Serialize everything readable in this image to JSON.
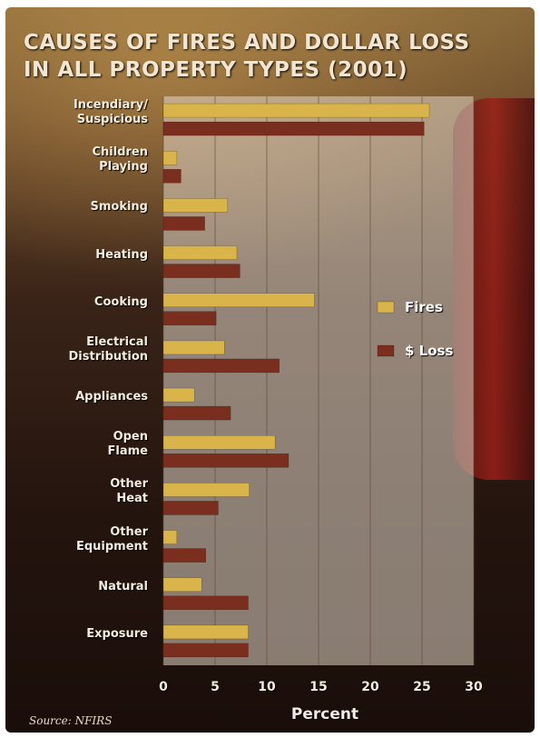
{
  "chart_data": {
    "type": "hbar",
    "title": "CAUSES OF FIRES AND DOLLAR LOSS\nIN ALL PROPERTY TYPES (2001)",
    "categories": [
      "Incendiary/\nSuspicious",
      "Children\nPlaying",
      "Smoking",
      "Heating",
      "Cooking",
      "Electrical\nDistribution",
      "Appliances",
      "Open\nFlame",
      "Other\nHeat",
      "Other\nEquipment",
      "Natural",
      "Exposure"
    ],
    "series": [
      {
        "name": "Fires",
        "color": "#d9b44a",
        "values": [
          25.7,
          1.3,
          6.2,
          7.1,
          14.6,
          5.9,
          3.0,
          10.8,
          8.3,
          1.3,
          3.7,
          8.2
        ]
      },
      {
        "name": "$ Loss",
        "color": "#7a2e1e",
        "values": [
          25.2,
          1.7,
          4.0,
          7.4,
          5.1,
          11.2,
          6.5,
          12.1,
          5.3,
          4.1,
          8.2,
          8.2
        ]
      }
    ],
    "xlim": [
      0,
      30
    ],
    "xticks": [
      0,
      5,
      10,
      15,
      20,
      25,
      30
    ],
    "grid": true,
    "xlabel": "Percent",
    "source": "Source: NFIRS"
  }
}
